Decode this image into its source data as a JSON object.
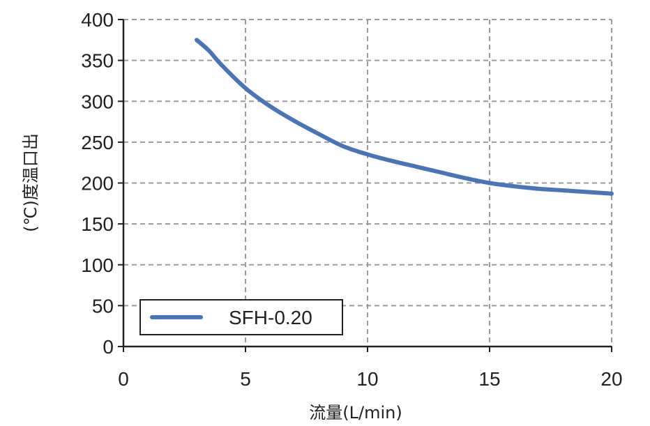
{
  "chart_data": {
    "type": "line",
    "xlabel": "流量(L/min)",
    "ylabel": "(℃)度温口出",
    "xlim": [
      0,
      20
    ],
    "ylim": [
      0,
      400
    ],
    "x_ticks": [
      "0",
      "5",
      "10",
      "15",
      "20"
    ],
    "y_ticks": [
      "0",
      "50",
      "100",
      "150",
      "200",
      "250",
      "300",
      "350",
      "400"
    ],
    "grid": true,
    "grid_style": "dashed",
    "legend_position": "bottom-left",
    "series": [
      {
        "name": "SFH-0.20",
        "color": "#4a74b8",
        "x": [
          3,
          3.5,
          4,
          5,
          6,
          7,
          8,
          9,
          10,
          11,
          12,
          13,
          14,
          15,
          16,
          17,
          18,
          19,
          20
        ],
        "y": [
          375,
          362,
          345,
          316,
          294,
          276,
          260,
          245,
          235,
          227,
          220,
          213,
          206,
          200,
          196,
          193,
          191,
          189,
          187
        ]
      }
    ]
  }
}
